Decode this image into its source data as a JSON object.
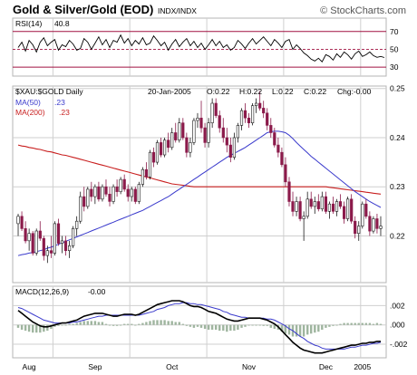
{
  "header": {
    "title": "Gold & Silver/Gold (EOD)",
    "symbol": "INDX/INDX",
    "copyright": "© StockCharts.com"
  },
  "colors": {
    "price_up": "#1a1a1a",
    "price_down": "#8b1a4a",
    "ma50": "#3a3acc",
    "ma200": "#c81e1e",
    "rsi_bands": "#a01040",
    "macd_line": "#000000",
    "macd_signal": "#3a3acc",
    "histogram": "#9fb59f"
  },
  "chart_data": [
    {
      "type": "line",
      "panel": "rsi",
      "label": "RSI(14)",
      "last_value": "40.8",
      "ylim": [
        20,
        85
      ],
      "yticks": [
        70,
        50,
        30
      ],
      "bands": [
        70,
        30
      ],
      "midline": 50,
      "values": [
        52,
        58,
        48,
        60,
        55,
        47,
        58,
        63,
        54,
        58,
        61,
        49,
        55,
        53,
        60,
        56,
        49,
        51,
        62,
        58,
        50,
        57,
        64,
        55,
        61,
        52,
        60,
        58,
        66,
        57,
        62,
        54,
        60,
        56,
        63,
        55,
        57,
        65,
        60,
        54,
        58,
        49,
        56,
        61,
        53,
        58,
        62,
        54,
        59,
        52,
        57,
        50,
        55,
        61,
        54,
        59,
        52,
        55,
        49,
        52,
        60,
        56,
        51,
        57,
        62,
        56,
        60,
        64,
        59,
        54,
        61,
        57,
        52,
        59,
        61,
        50,
        55,
        51,
        46,
        43,
        39,
        37,
        40,
        36,
        44,
        42,
        38,
        45,
        41,
        47,
        44,
        39,
        45,
        48,
        42,
        44,
        47,
        43,
        41,
        42,
        40.8
      ]
    },
    {
      "type": "line",
      "panel": "price",
      "label": "$XAU:$GOLD Daily",
      "quote": {
        "date": "20-Jan-2005",
        "open": "O:0.22",
        "high": "H:0.22",
        "low": "L:0.22",
        "close": "C:0.22",
        "change": "Chg:-0.00"
      },
      "legend": [
        {
          "name": "MA(50)",
          "value": ".23",
          "color": "#3a3acc"
        },
        {
          "name": "MA(200)",
          "value": ".23",
          "color": "#c81e1e"
        }
      ],
      "ylim": [
        0.2105,
        0.2505
      ],
      "yticks": [
        0.25,
        0.24,
        0.23,
        0.22
      ],
      "ytick_labels": [
        "0.25",
        "0.24",
        "0.23",
        "0.22"
      ],
      "x_labels": [
        "Aug",
        "Sep",
        "Oct",
        "Nov",
        "Dec",
        "2005"
      ],
      "candles": [
        [
          0.2225,
          0.2245,
          0.22,
          0.224
        ],
        [
          0.224,
          0.225,
          0.221,
          0.2215
        ],
        [
          0.2215,
          0.223,
          0.2185,
          0.219
        ],
        [
          0.219,
          0.2215,
          0.217,
          0.2205
        ],
        [
          0.2205,
          0.221,
          0.216,
          0.2165
        ],
        [
          0.2165,
          0.2215,
          0.216,
          0.221
        ],
        [
          0.221,
          0.223,
          0.219,
          0.2195
        ],
        [
          0.2195,
          0.22,
          0.215,
          0.216
        ],
        [
          0.216,
          0.218,
          0.2145,
          0.217
        ],
        [
          0.217,
          0.22,
          0.2155,
          0.2165
        ],
        [
          0.2165,
          0.223,
          0.216,
          0.2225
        ],
        [
          0.2225,
          0.2235,
          0.218,
          0.2185
        ],
        [
          0.2185,
          0.22,
          0.2165,
          0.219
        ],
        [
          0.219,
          0.22,
          0.216,
          0.217
        ],
        [
          0.217,
          0.219,
          0.2155,
          0.218
        ],
        [
          0.218,
          0.222,
          0.2175,
          0.2215
        ],
        [
          0.2215,
          0.224,
          0.22,
          0.223
        ],
        [
          0.223,
          0.229,
          0.2225,
          0.228
        ],
        [
          0.228,
          0.23,
          0.225,
          0.226
        ],
        [
          0.226,
          0.23,
          0.2255,
          0.2295
        ],
        [
          0.2295,
          0.231,
          0.227,
          0.228
        ],
        [
          0.228,
          0.2305,
          0.2265,
          0.23
        ],
        [
          0.23,
          0.231,
          0.227,
          0.2275
        ],
        [
          0.2275,
          0.2305,
          0.227,
          0.23
        ],
        [
          0.23,
          0.2315,
          0.228,
          0.2285
        ],
        [
          0.2285,
          0.23,
          0.226,
          0.227
        ],
        [
          0.227,
          0.2305,
          0.2265,
          0.23
        ],
        [
          0.23,
          0.2315,
          0.228,
          0.229
        ],
        [
          0.229,
          0.232,
          0.2285,
          0.2315
        ],
        [
          0.2315,
          0.2325,
          0.229,
          0.2295
        ],
        [
          0.2295,
          0.2305,
          0.227,
          0.228
        ],
        [
          0.228,
          0.23,
          0.227,
          0.2295
        ],
        [
          0.2295,
          0.23,
          0.2265,
          0.227
        ],
        [
          0.227,
          0.231,
          0.2265,
          0.2305
        ],
        [
          0.2305,
          0.234,
          0.23,
          0.2335
        ],
        [
          0.2335,
          0.235,
          0.2315,
          0.232
        ],
        [
          0.232,
          0.2375,
          0.2315,
          0.237
        ],
        [
          0.237,
          0.238,
          0.234,
          0.235
        ],
        [
          0.235,
          0.2395,
          0.2345,
          0.239
        ],
        [
          0.239,
          0.24,
          0.236,
          0.2365
        ],
        [
          0.2365,
          0.24,
          0.236,
          0.2395
        ],
        [
          0.2395,
          0.241,
          0.237,
          0.238
        ],
        [
          0.238,
          0.242,
          0.2375,
          0.241
        ],
        [
          0.241,
          0.243,
          0.239,
          0.2395
        ],
        [
          0.2395,
          0.244,
          0.239,
          0.243
        ],
        [
          0.243,
          0.244,
          0.2395,
          0.24
        ],
        [
          0.24,
          0.241,
          0.236,
          0.237
        ],
        [
          0.237,
          0.24,
          0.236,
          0.239
        ],
        [
          0.239,
          0.244,
          0.2385,
          0.2435
        ],
        [
          0.2435,
          0.245,
          0.242,
          0.244
        ],
        [
          0.244,
          0.2475,
          0.241,
          0.242
        ],
        [
          0.242,
          0.243,
          0.238,
          0.239
        ],
        [
          0.239,
          0.244,
          0.238,
          0.243
        ],
        [
          0.243,
          0.248,
          0.242,
          0.247
        ],
        [
          0.247,
          0.248,
          0.244,
          0.2445
        ],
        [
          0.2445,
          0.2455,
          0.241,
          0.242
        ],
        [
          0.242,
          0.244,
          0.239,
          0.24
        ],
        [
          0.24,
          0.242,
          0.237,
          0.2385
        ],
        [
          0.2385,
          0.24,
          0.235,
          0.236
        ],
        [
          0.236,
          0.241,
          0.2355,
          0.24
        ],
        [
          0.24,
          0.243,
          0.239,
          0.2425
        ],
        [
          0.2425,
          0.246,
          0.2415,
          0.2455
        ],
        [
          0.2455,
          0.247,
          0.243,
          0.244
        ],
        [
          0.244,
          0.245,
          0.242,
          0.243
        ],
        [
          0.243,
          0.247,
          0.2425,
          0.2465
        ],
        [
          0.2465,
          0.248,
          0.245,
          0.247
        ],
        [
          0.247,
          0.2495,
          0.2455,
          0.246
        ],
        [
          0.246,
          0.2475,
          0.244,
          0.245
        ],
        [
          0.245,
          0.246,
          0.2415,
          0.2425
        ],
        [
          0.2425,
          0.244,
          0.24,
          0.241
        ],
        [
          0.241,
          0.242,
          0.238,
          0.2385
        ],
        [
          0.2385,
          0.24,
          0.236,
          0.237
        ],
        [
          0.237,
          0.238,
          0.234,
          0.2345
        ],
        [
          0.2345,
          0.236,
          0.23,
          0.231
        ],
        [
          0.231,
          0.232,
          0.226,
          0.227
        ],
        [
          0.227,
          0.229,
          0.224,
          0.225
        ],
        [
          0.225,
          0.228,
          0.224,
          0.227
        ],
        [
          0.227,
          0.228,
          0.223,
          0.2235
        ],
        [
          0.2235,
          0.225,
          0.219,
          0.224
        ],
        [
          0.224,
          0.229,
          0.2235,
          0.2275
        ],
        [
          0.2275,
          0.229,
          0.2255,
          0.226
        ],
        [
          0.226,
          0.228,
          0.2245,
          0.227
        ],
        [
          0.227,
          0.2285,
          0.225,
          0.2255
        ],
        [
          0.2255,
          0.229,
          0.225,
          0.228
        ],
        [
          0.228,
          0.229,
          0.2245,
          0.225
        ],
        [
          0.225,
          0.227,
          0.2235,
          0.2265
        ],
        [
          0.2265,
          0.228,
          0.2245,
          0.225
        ],
        [
          0.225,
          0.2275,
          0.224,
          0.227
        ],
        [
          0.227,
          0.2285,
          0.2255,
          0.226
        ],
        [
          0.226,
          0.227,
          0.2225,
          0.2235
        ],
        [
          0.2235,
          0.228,
          0.223,
          0.2275
        ],
        [
          0.2275,
          0.2285,
          0.2225,
          0.223
        ],
        [
          0.223,
          0.224,
          0.2195,
          0.2205
        ],
        [
          0.2205,
          0.223,
          0.219,
          0.222
        ],
        [
          0.222,
          0.227,
          0.2215,
          0.2265
        ],
        [
          0.2265,
          0.2275,
          0.2235,
          0.224
        ],
        [
          0.224,
          0.225,
          0.22,
          0.221
        ],
        [
          0.221,
          0.224,
          0.2205,
          0.2235
        ],
        [
          0.2235,
          0.2245,
          0.2205,
          0.2215
        ],
        [
          0.2215,
          0.224,
          0.22,
          0.222
        ]
      ],
      "ma50": [
        0.216,
        0.2162,
        0.2163,
        0.2165,
        0.2166,
        0.2168,
        0.217,
        0.2172,
        0.2175,
        0.2177,
        0.218,
        0.2183,
        0.2186,
        0.2189,
        0.2192,
        0.2195,
        0.2198,
        0.2201,
        0.2204,
        0.2207,
        0.221,
        0.2213,
        0.2216,
        0.2219,
        0.2222,
        0.2225,
        0.2228,
        0.2231,
        0.2234,
        0.2237,
        0.224,
        0.2243,
        0.2246,
        0.2249,
        0.2252,
        0.2256,
        0.226,
        0.2264,
        0.2268,
        0.2272,
        0.2276,
        0.228,
        0.2285,
        0.229,
        0.2295,
        0.23,
        0.2305,
        0.231,
        0.2315,
        0.232,
        0.2325,
        0.233,
        0.2335,
        0.234,
        0.2345,
        0.235,
        0.2355,
        0.236,
        0.2364,
        0.2368,
        0.2372,
        0.2376,
        0.238,
        0.2385,
        0.239,
        0.2395,
        0.24,
        0.2405,
        0.241,
        0.2412,
        0.2413,
        0.2413,
        0.2412,
        0.241,
        0.2405,
        0.2398,
        0.239,
        0.2383,
        0.2376,
        0.2369,
        0.2362,
        0.2356,
        0.235,
        0.2344,
        0.2338,
        0.2332,
        0.2326,
        0.232,
        0.2314,
        0.2308,
        0.2302,
        0.2296,
        0.229,
        0.2285,
        0.228,
        0.2275,
        0.227,
        0.2266,
        0.2262,
        0.2258
      ],
      "ma200": [
        0.2385,
        0.2383,
        0.2382,
        0.238,
        0.2379,
        0.2377,
        0.2376,
        0.2374,
        0.2372,
        0.2371,
        0.2369,
        0.2367,
        0.2365,
        0.2364,
        0.2362,
        0.236,
        0.2358,
        0.2356,
        0.2354,
        0.2352,
        0.235,
        0.2348,
        0.2346,
        0.2344,
        0.2342,
        0.234,
        0.2338,
        0.2336,
        0.2334,
        0.2332,
        0.233,
        0.2328,
        0.2326,
        0.2324,
        0.2322,
        0.232,
        0.2318,
        0.2316,
        0.2314,
        0.2312,
        0.231,
        0.2308,
        0.2306,
        0.2305,
        0.2304,
        0.2303,
        0.2302,
        0.2301,
        0.23,
        0.23,
        0.23,
        0.23,
        0.23,
        0.23,
        0.23,
        0.23,
        0.23,
        0.23,
        0.23,
        0.23,
        0.23,
        0.23,
        0.23,
        0.23,
        0.23,
        0.23,
        0.23,
        0.23,
        0.23,
        0.23,
        0.23,
        0.23,
        0.23,
        0.23,
        0.23,
        0.23,
        0.23,
        0.23,
        0.23,
        0.23,
        0.23,
        0.23,
        0.23,
        0.23,
        0.23,
        0.2299,
        0.2298,
        0.2297,
        0.2296,
        0.2295,
        0.2294,
        0.2293,
        0.2292,
        0.2291,
        0.229,
        0.2289,
        0.2288,
        0.2287,
        0.2286,
        0.2285
      ]
    },
    {
      "type": "line",
      "panel": "macd",
      "label": "MACD(12,26,9)",
      "last_value": "-0.00",
      "ylim": [
        -0.0034,
        0.004
      ],
      "yticks": [
        0.002,
        0.0,
        -0.002
      ],
      "ytick_labels": [
        ".002",
        ".000",
        "-.002"
      ],
      "macd": [
        0.0015,
        0.0012,
        0.0009,
        0.0006,
        0.0003,
        0.0001,
        -0.0001,
        -0.0002,
        -0.0002,
        -0.0001,
        0.0,
        0.0001,
        0.0002,
        0.0002,
        0.0003,
        0.0004,
        0.0005,
        0.0007,
        0.0009,
        0.001,
        0.0011,
        0.0012,
        0.0012,
        0.0012,
        0.0011,
        0.001,
        0.0009,
        0.0009,
        0.001,
        0.0011,
        0.0011,
        0.0011,
        0.001,
        0.0011,
        0.0013,
        0.0015,
        0.0017,
        0.0019,
        0.0021,
        0.0022,
        0.0023,
        0.0024,
        0.0025,
        0.0025,
        0.0025,
        0.0024,
        0.0022,
        0.002,
        0.0019,
        0.0019,
        0.0018,
        0.0016,
        0.0014,
        0.0013,
        0.0012,
        0.001,
        0.0008,
        0.0006,
        0.0005,
        0.0004,
        0.0004,
        0.0005,
        0.0006,
        0.0007,
        0.0007,
        0.0007,
        0.0007,
        0.0006,
        0.0005,
        0.0003,
        0.0001,
        -0.0002,
        -0.0006,
        -0.001,
        -0.0014,
        -0.0018,
        -0.0021,
        -0.0024,
        -0.0026,
        -0.0027,
        -0.0028,
        -0.0029,
        -0.0029,
        -0.0029,
        -0.0028,
        -0.0027,
        -0.0026,
        -0.0025,
        -0.0024,
        -0.0023,
        -0.0022,
        -0.0021,
        -0.0021,
        -0.002,
        -0.0019,
        -0.0019,
        -0.0018,
        -0.0018,
        -0.0017,
        -0.0017
      ],
      "signal": [
        0.0018,
        0.0017,
        0.0015,
        0.0013,
        0.0011,
        0.0009,
        0.0007,
        0.0005,
        0.0004,
        0.0003,
        0.0002,
        0.0002,
        0.0002,
        0.0002,
        0.0002,
        0.0003,
        0.0003,
        0.0004,
        0.0005,
        0.0006,
        0.0007,
        0.0008,
        0.0009,
        0.0009,
        0.001,
        0.001,
        0.001,
        0.001,
        0.001,
        0.001,
        0.001,
        0.001,
        0.001,
        0.001,
        0.0011,
        0.0012,
        0.0013,
        0.0014,
        0.0016,
        0.0017,
        0.0018,
        0.002,
        0.0021,
        0.0022,
        0.0022,
        0.0023,
        0.0023,
        0.0022,
        0.0022,
        0.0021,
        0.0021,
        0.002,
        0.0019,
        0.0018,
        0.0017,
        0.0016,
        0.0014,
        0.0013,
        0.0011,
        0.001,
        0.0009,
        0.0008,
        0.0008,
        0.0007,
        0.0007,
        0.0007,
        0.0007,
        0.0007,
        0.0006,
        0.0006,
        0.0005,
        0.0003,
        0.0001,
        -0.0001,
        -0.0004,
        -0.0006,
        -0.0009,
        -0.0012,
        -0.0014,
        -0.0017,
        -0.0019,
        -0.0021,
        -0.0022,
        -0.0024,
        -0.0025,
        -0.0025,
        -0.0025,
        -0.0025,
        -0.0025,
        -0.0025,
        -0.0024,
        -0.0023,
        -0.0023,
        -0.0022,
        -0.0021,
        -0.0021,
        -0.002,
        -0.0019,
        -0.0019,
        -0.0018
      ]
    }
  ]
}
